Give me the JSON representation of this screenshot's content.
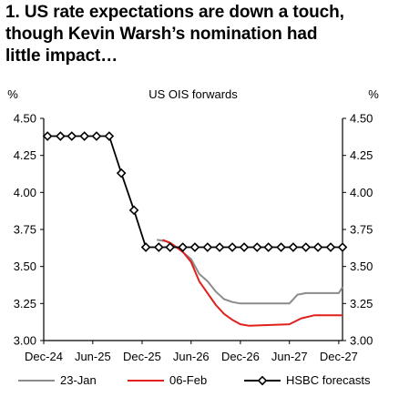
{
  "title_lines": [
    "1. US rate expectations are down a touch,",
    "though Kevin Warsh’s nomination had",
    "little impact…"
  ],
  "chart_data": {
    "type": "line",
    "subtitle": "US OIS forwards",
    "ylabel_left": "%",
    "ylabel_right": "%",
    "ylim": [
      3.0,
      4.5
    ],
    "yticks": [
      "4.50",
      "4.25",
      "4.00",
      "3.75",
      "3.50",
      "3.25",
      "3.00"
    ],
    "xlim": [
      "2024-12-01",
      "2027-12-15"
    ],
    "xticks": [
      {
        "label": "Dec-24",
        "date": "2024-12-01"
      },
      {
        "label": "Jun-25",
        "date": "2025-06-01"
      },
      {
        "label": "Dec-25",
        "date": "2025-12-01"
      },
      {
        "label": "Jun-26",
        "date": "2026-06-01"
      },
      {
        "label": "Dec-26",
        "date": "2026-12-01"
      },
      {
        "label": "Jun-27",
        "date": "2027-06-01"
      },
      {
        "label": "Dec-27",
        "date": "2027-12-01"
      }
    ],
    "series": [
      {
        "name": "23-Jan",
        "color": "#8c8c8c",
        "marker": "none",
        "points": [
          [
            "2026-01-25",
            3.68
          ],
          [
            "2026-03-01",
            3.67
          ],
          [
            "2026-04-15",
            3.62
          ],
          [
            "2026-06-01",
            3.55
          ],
          [
            "2026-07-01",
            3.45
          ],
          [
            "2026-08-01",
            3.4
          ],
          [
            "2026-09-01",
            3.33
          ],
          [
            "2026-10-01",
            3.28
          ],
          [
            "2026-11-01",
            3.26
          ],
          [
            "2026-12-01",
            3.25
          ],
          [
            "2027-03-01",
            3.25
          ],
          [
            "2027-06-01",
            3.25
          ],
          [
            "2027-07-01",
            3.31
          ],
          [
            "2027-08-01",
            3.32
          ],
          [
            "2027-12-01",
            3.32
          ],
          [
            "2027-12-15",
            3.36
          ]
        ]
      },
      {
        "name": "06-Feb",
        "color": "#e0201b",
        "marker": "none",
        "points": [
          [
            "2026-02-15",
            3.68
          ],
          [
            "2026-03-15",
            3.66
          ],
          [
            "2026-05-01",
            3.6
          ],
          [
            "2026-06-01",
            3.53
          ],
          [
            "2026-07-01",
            3.4
          ],
          [
            "2026-08-01",
            3.32
          ],
          [
            "2026-09-01",
            3.24
          ],
          [
            "2026-10-01",
            3.18
          ],
          [
            "2026-11-01",
            3.14
          ],
          [
            "2026-12-01",
            3.11
          ],
          [
            "2027-01-01",
            3.1
          ],
          [
            "2027-06-01",
            3.11
          ],
          [
            "2027-07-15",
            3.15
          ],
          [
            "2027-09-01",
            3.17
          ],
          [
            "2027-12-15",
            3.17
          ]
        ]
      },
      {
        "name": "HSBC forecasts",
        "color": "#000000",
        "marker": "diamond",
        "points": [
          [
            "2024-12-15",
            4.38
          ],
          [
            "2025-02-01",
            4.38
          ],
          [
            "2025-03-15",
            4.38
          ],
          [
            "2025-05-01",
            4.38
          ],
          [
            "2025-06-15",
            4.38
          ],
          [
            "2025-08-01",
            4.38
          ],
          [
            "2025-09-15",
            4.13
          ],
          [
            "2025-11-01",
            3.88
          ],
          [
            "2025-12-15",
            3.63
          ],
          [
            "2026-02-01",
            3.63
          ],
          [
            "2026-03-15",
            3.63
          ],
          [
            "2026-05-01",
            3.63
          ],
          [
            "2026-06-15",
            3.63
          ],
          [
            "2026-08-01",
            3.63
          ],
          [
            "2026-09-15",
            3.63
          ],
          [
            "2026-11-01",
            3.63
          ],
          [
            "2026-12-15",
            3.63
          ],
          [
            "2027-02-01",
            3.63
          ],
          [
            "2027-03-15",
            3.63
          ],
          [
            "2027-05-01",
            3.63
          ],
          [
            "2027-06-15",
            3.63
          ],
          [
            "2027-08-01",
            3.63
          ],
          [
            "2027-09-15",
            3.63
          ],
          [
            "2027-11-01",
            3.63
          ],
          [
            "2027-12-15",
            3.63
          ]
        ]
      }
    ],
    "legend": {
      "placement": "bottom",
      "entries": [
        "23-Jan",
        "06-Feb",
        "HSBC forecasts"
      ]
    }
  }
}
